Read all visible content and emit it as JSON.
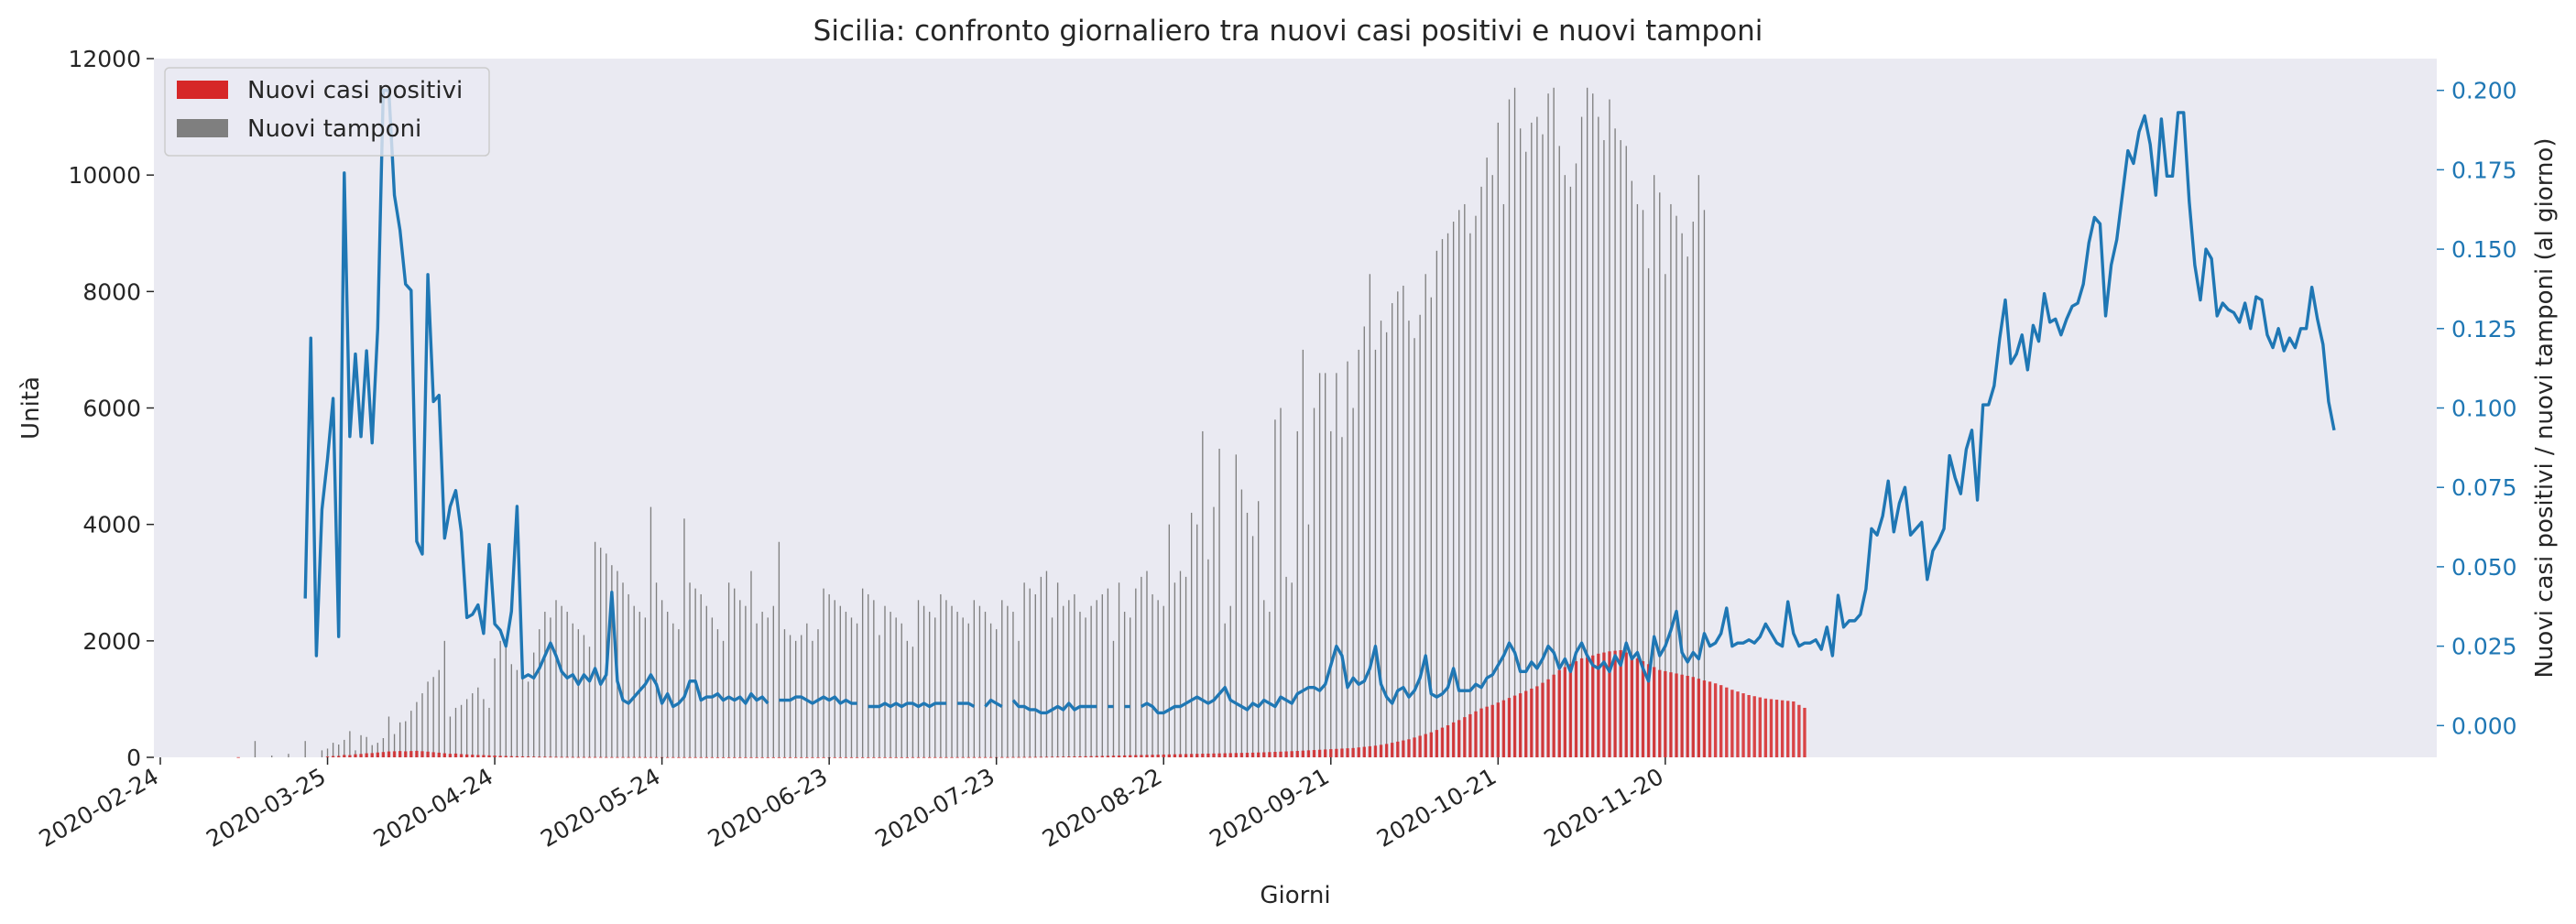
{
  "chart_data": {
    "type": "bar",
    "title": "Sicilia: confronto giornaliero tra nuovi casi positivi e nuovi tamponi",
    "xlabel": "Giorni",
    "ylabel": "Unità",
    "ylabel_right": "Nuovi casi positivi / nuovi tamponi (al giorno)",
    "start_date": "2020-02-24",
    "x_ticks": [
      "2020-02-24",
      "2020-03-25",
      "2020-04-24",
      "2020-05-24",
      "2020-06-23",
      "2020-07-23",
      "2020-08-22",
      "2020-09-21",
      "2020-10-21",
      "2020-11-20"
    ],
    "y_ticks": [
      "0",
      "2000",
      "4000",
      "6000",
      "8000",
      "10000",
      "12000"
    ],
    "y2_ticks": [
      "0.000",
      "0.025",
      "0.050",
      "0.075",
      "0.100",
      "0.125",
      "0.150",
      "0.175",
      "0.200"
    ],
    "ylim": [
      0,
      12000
    ],
    "ylim_right": [
      -0.01,
      0.21
    ],
    "grid": false,
    "legend_position": "top-left",
    "colors": {
      "positivi": "#d62728",
      "tamponi": "#7f7f7f",
      "ratio": "#1f77b4",
      "background": "#eaeaf2",
      "right_axis": "#1f77b4"
    },
    "series": [
      {
        "name": "Nuovi casi positivi",
        "kind": "bar",
        "values": [
          0,
          0,
          0,
          0,
          0,
          0,
          0,
          0,
          0,
          0,
          0,
          0,
          0,
          0,
          3,
          0,
          0,
          0,
          0,
          0,
          0,
          0,
          0,
          0,
          0,
          0,
          0,
          0,
          0,
          0,
          14,
          22,
          24,
          41,
          38,
          53,
          58,
          70,
          73,
          83,
          91,
          101,
          104,
          108,
          103,
          108,
          112,
          105,
          98,
          88,
          80,
          70,
          60,
          65,
          55,
          50,
          45,
          40,
          38,
          34,
          31,
          25,
          23,
          20,
          18,
          16,
          14,
          12,
          10,
          10,
          9,
          8,
          7,
          7,
          6,
          5,
          5,
          5,
          5,
          5,
          4,
          4,
          4,
          4,
          4,
          4,
          4,
          3,
          3,
          3,
          3,
          3,
          3,
          2,
          2,
          2,
          2,
          2,
          2,
          2,
          1,
          1,
          1,
          1,
          1,
          1,
          1,
          1,
          1,
          1,
          1,
          1,
          1,
          1,
          1,
          1,
          1,
          1,
          1,
          1,
          1,
          1,
          1,
          1,
          1,
          1,
          1,
          1,
          1,
          1,
          1,
          1,
          1,
          1,
          1,
          2,
          2,
          2,
          2,
          2,
          2,
          2,
          2,
          3,
          3,
          3,
          3,
          3,
          3,
          3,
          3,
          4,
          4,
          5,
          5,
          6,
          6,
          7,
          8,
          9,
          10,
          11,
          12,
          14,
          15,
          16,
          18,
          20,
          22,
          24,
          26,
          28,
          30,
          33,
          36,
          38,
          40,
          42,
          44,
          46,
          48,
          50,
          52,
          54,
          56,
          58,
          60,
          62,
          64,
          66,
          68,
          70,
          72,
          74,
          76,
          78,
          80,
          83,
          86,
          90,
          94,
          98,
          102,
          106,
          110,
          115,
          120,
          125,
          130,
          135,
          140,
          145,
          150,
          155,
          160,
          170,
          180,
          190,
          200,
          215,
          230,
          250,
          270,
          290,
          310,
          340,
          370,
          400,
          430,
          470,
          510,
          550,
          600,
          640,
          690,
          740,
          790,
          840,
          870,
          900,
          940,
          980,
          1020,
          1060,
          1100,
          1140,
          1180,
          1220,
          1280,
          1340,
          1420,
          1500,
          1550,
          1600,
          1650,
          1700,
          1720,
          1750,
          1780,
          1800,
          1820,
          1830,
          1840,
          1800,
          1750,
          1700,
          1650,
          1600,
          1550,
          1500,
          1480,
          1460,
          1440,
          1420,
          1400,
          1380,
          1350,
          1320,
          1300,
          1270,
          1240,
          1200,
          1160,
          1130,
          1100,
          1070,
          1050,
          1030,
          1010,
          1000,
          990,
          980,
          970,
          960,
          900,
          850
        ]
      },
      {
        "name": "Nuovi tamponi",
        "kind": "bar",
        "values": [
          0,
          0,
          0,
          0,
          0,
          0,
          0,
          0,
          0,
          0,
          0,
          0,
          0,
          0,
          0,
          0,
          0,
          280,
          0,
          0,
          30,
          0,
          0,
          60,
          0,
          0,
          280,
          0,
          0,
          120,
          150,
          250,
          220,
          300,
          450,
          120,
          380,
          350,
          210,
          250,
          330,
          700,
          400,
          600,
          620,
          800,
          950,
          1100,
          1300,
          1380,
          1500,
          2000,
          700,
          850,
          900,
          1000,
          1100,
          1200,
          1000,
          850,
          1700,
          2000,
          1900,
          1600,
          1500,
          1400,
          1300,
          1800,
          2200,
          2500,
          2400,
          2700,
          2600,
          2500,
          2300,
          2200,
          2100,
          1900,
          3700,
          3600,
          3500,
          3300,
          3200,
          3000,
          2800,
          2600,
          2500,
          2400,
          4300,
          3000,
          2700,
          2500,
          2300,
          2200,
          4100,
          3000,
          2900,
          2800,
          2600,
          2400,
          2200,
          2000,
          3000,
          2900,
          2700,
          2600,
          3200,
          2300,
          2500,
          2400,
          2600,
          3700,
          2200,
          2100,
          2000,
          2100,
          2300,
          2000,
          2200,
          2900,
          2800,
          2700,
          2600,
          2500,
          2400,
          2300,
          2900,
          2800,
          2700,
          2100,
          2600,
          2500,
          2400,
          2300,
          2000,
          1900,
          2700,
          2600,
          2500,
          2400,
          2800,
          2700,
          2600,
          2500,
          2400,
          2300,
          2700,
          2600,
          2500,
          2300,
          2200,
          2700,
          2600,
          2500,
          2000,
          3000,
          2900,
          2800,
          3100,
          3200,
          2400,
          3000,
          2600,
          2700,
          2800,
          2500,
          2400,
          2600,
          2700,
          2800,
          2900,
          2000,
          3000,
          2500,
          2400,
          2900,
          3100,
          3200,
          2800,
          2700,
          2600,
          4000,
          3000,
          3200,
          3100,
          4200,
          4000,
          5600,
          3400,
          4300,
          5300,
          2300,
          2600,
          5200,
          4600,
          4200,
          3800,
          4400,
          2700,
          2500,
          5800,
          6000,
          3100,
          3000,
          5600,
          7000,
          4000,
          6000,
          6600,
          6600,
          5600,
          6600,
          5500,
          6800,
          6000,
          7000,
          7400,
          8300,
          7000,
          7500,
          7300,
          7800,
          8000,
          8100,
          7500,
          7200,
          7600,
          8300,
          7900,
          8700,
          8900,
          9000,
          9200,
          9400,
          9500,
          9000,
          9300,
          9800,
          10300,
          10000,
          10900,
          9500,
          11300,
          11500,
          10800,
          10400,
          10900,
          11000,
          10700,
          11400,
          11500,
          10500,
          10000,
          9800,
          10200,
          11000,
          11500,
          11400,
          11000,
          10600,
          11300,
          10800,
          10600,
          10500,
          9900,
          9500,
          9400,
          8400,
          10000,
          9700,
          8300,
          9500,
          9300,
          9000,
          8600,
          9200,
          10000,
          9400
        ]
      },
      {
        "name": "",
        "kind": "line",
        "axis": "right",
        "x_start_index": 26,
        "values": [
          0.04,
          0.122,
          0.022,
          0.068,
          0.084,
          0.103,
          0.028,
          0.174,
          0.091,
          0.117,
          0.091,
          0.118,
          0.089,
          0.125,
          0.2,
          0.2,
          0.167,
          0.156,
          0.139,
          0.137,
          0.058,
          0.054,
          0.142,
          0.102,
          0.104,
          0.059,
          0.069,
          0.074,
          0.061,
          0.034,
          0.035,
          0.038,
          0.029,
          0.057,
          0.032,
          0.03,
          0.025,
          0.036,
          0.069,
          0.015,
          0.016,
          0.015,
          0.018,
          0.022,
          0.026,
          0.022,
          0.017,
          0.015,
          0.016,
          0.013,
          0.016,
          0.014,
          0.018,
          0.013,
          0.016,
          0.042,
          0.014,
          0.008,
          0.007,
          0.009,
          0.011,
          0.013,
          0.016,
          0.013,
          0.007,
          0.01,
          0.006,
          0.007,
          0.009,
          0.014,
          0.014,
          0.008,
          0.009,
          0.009,
          0.01,
          0.008,
          0.009,
          0.008,
          0.009,
          0.007,
          0.01,
          0.008,
          0.009,
          0.007,
          null,
          0.008,
          0.008,
          0.008,
          0.009,
          0.009,
          0.008,
          0.007,
          0.008,
          0.009,
          0.008,
          0.009,
          0.007,
          0.008,
          0.007,
          0.007,
          null,
          0.006,
          0.006,
          0.006,
          0.007,
          0.006,
          0.007,
          0.006,
          0.007,
          0.007,
          0.006,
          0.007,
          0.006,
          0.007,
          0.007,
          0.007,
          null,
          0.007,
          0.007,
          0.007,
          0.006,
          null,
          0.006,
          0.008,
          0.007,
          0.006,
          null,
          0.008,
          0.006,
          0.006,
          0.005,
          0.005,
          0.004,
          0.004,
          0.005,
          0.006,
          0.005,
          0.007,
          0.005,
          0.006,
          0.006,
          0.006,
          0.006,
          null,
          0.006,
          0.006,
          null,
          0.006,
          0.006,
          null,
          0.006,
          0.007,
          0.006,
          0.004,
          0.004,
          0.005,
          0.006,
          0.006,
          0.007,
          0.008,
          0.009,
          0.008,
          0.007,
          0.008,
          0.01,
          0.012,
          0.008,
          0.007,
          0.006,
          0.005,
          0.007,
          0.006,
          0.008,
          0.007,
          0.006,
          0.009,
          0.008,
          0.007,
          0.01,
          0.011,
          0.012,
          0.012,
          0.011,
          0.013,
          0.019,
          0.025,
          0.022,
          0.012,
          0.015,
          0.013,
          0.014,
          0.018,
          0.025,
          0.013,
          0.009,
          0.007,
          0.011,
          0.012,
          0.009,
          0.011,
          0.015,
          0.022,
          0.01,
          0.009,
          0.01,
          0.012,
          0.018,
          0.011,
          0.011,
          0.011,
          0.013,
          0.012,
          0.015,
          0.016,
          0.019,
          0.022,
          0.026,
          0.023,
          0.017,
          0.017,
          0.02,
          0.018,
          0.021,
          0.025,
          0.023,
          0.018,
          0.021,
          0.017,
          0.023,
          0.026,
          0.022,
          0.019,
          0.018,
          0.02,
          0.017,
          0.022,
          0.019,
          0.026,
          0.021,
          0.023,
          0.018,
          0.014,
          0.028,
          0.022,
          0.025,
          0.03,
          0.036,
          0.023,
          0.02,
          0.023,
          0.021,
          0.029,
          0.025,
          0.026,
          0.029,
          0.037,
          0.025,
          0.026,
          0.026,
          0.027,
          0.026,
          0.028,
          0.032,
          0.029,
          0.026,
          0.025,
          0.039,
          0.029,
          0.025,
          0.026,
          0.026,
          0.027,
          0.024,
          0.031,
          0.022,
          0.041,
          0.031,
          0.033,
          0.033,
          0.035,
          0.043,
          0.062,
          0.06,
          0.066,
          0.077,
          0.061,
          0.07,
          0.075,
          0.06,
          0.062,
          0.064,
          0.046,
          0.055,
          0.058,
          0.062,
          0.085,
          0.078,
          0.073,
          0.087,
          0.093,
          0.071,
          0.101,
          0.101,
          0.107,
          0.122,
          0.134,
          0.114,
          0.117,
          0.123,
          0.112,
          0.126,
          0.121,
          0.136,
          0.127,
          0.128,
          0.123,
          0.128,
          0.132,
          0.133,
          0.139,
          0.152,
          0.16,
          0.158,
          0.129,
          0.145,
          0.153,
          0.167,
          0.181,
          0.177,
          0.187,
          0.192,
          0.183,
          0.167,
          0.191,
          0.173,
          0.173,
          0.193,
          0.193,
          0.165,
          0.145,
          0.134,
          0.15,
          0.147,
          0.129,
          0.133,
          0.131,
          0.13,
          0.127,
          0.133,
          0.125,
          0.135,
          0.134,
          0.123,
          0.119,
          0.125,
          0.118,
          0.122,
          0.119,
          0.125,
          0.125,
          0.138,
          0.128,
          0.12,
          0.102,
          0.093
        ],
        "note_x": "one value per day starting at start_date + x_start_index"
      }
    ]
  }
}
